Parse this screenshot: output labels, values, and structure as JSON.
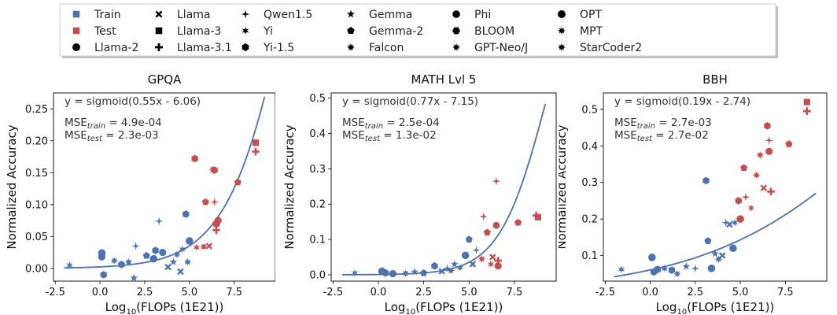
{
  "colors": {
    "train": "#4c72b0",
    "test": "#c44e52",
    "fit": "#4c72b0"
  },
  "legend": {
    "split": [
      {
        "label": "Train",
        "color": "#4c72b0"
      },
      {
        "label": "Test",
        "color": "#c44e52"
      }
    ],
    "models": [
      {
        "label": "Llama-2",
        "marker": "circle"
      },
      {
        "label": "Llama",
        "marker": "x-thick"
      },
      {
        "label": "Llama-3",
        "marker": "square"
      },
      {
        "label": "Llama-3.1",
        "marker": "plus-thick"
      },
      {
        "label": "Qwen1.5",
        "marker": "diamond-thin"
      },
      {
        "label": "Yi",
        "marker": "star6"
      },
      {
        "label": "Yi-1.5",
        "marker": "hexagon"
      },
      {
        "label": "Gemma",
        "marker": "star5"
      },
      {
        "label": "Gemma-2",
        "marker": "pentagon"
      },
      {
        "label": "Falcon",
        "marker": "star8"
      },
      {
        "label": "Phi",
        "marker": "octagon"
      },
      {
        "label": "BLOOM",
        "marker": "hexagon-flat"
      },
      {
        "label": "GPT-Neo/J",
        "marker": "star8"
      },
      {
        "label": "OPT",
        "marker": "circle"
      },
      {
        "label": "MPT",
        "marker": "star8"
      },
      {
        "label": "StarCoder2",
        "marker": "star8"
      }
    ]
  },
  "chart_data": [
    {
      "type": "scatter",
      "title": "GPQA",
      "xlabel": "Log10(FLOPs (1E21))",
      "ylabel": "Normalized Accuracy",
      "xlim": [
        -2.6,
        9.8
      ],
      "ylim": [
        -0.02,
        0.275
      ],
      "xticks": [
        -2.5,
        0.0,
        2.5,
        5.0,
        7.5
      ],
      "yticks": [
        0.0,
        0.05,
        0.1,
        0.15,
        0.2,
        0.25
      ],
      "tick_decimals": 2,
      "fit": {
        "a": 0.55,
        "b": -6.06,
        "x_range": [
          -2.0,
          9.2
        ],
        "equation": "y = sigmoid(0.55x - 6.06)"
      },
      "mse_train": {
        "prefix": "MSE",
        "sub": "train",
        "value": " = 4.9e-04"
      },
      "mse_test": {
        "prefix": "MSE",
        "sub": "test",
        "value": " = 2.3e-03"
      },
      "series": [
        {
          "name": "Train",
          "points": [
            {
              "x": -1.7,
              "y": 0.005,
              "m": "star6"
            },
            {
              "x": 0.1,
              "y": 0.024,
              "m": "circle"
            },
            {
              "x": 0.1,
              "y": 0.018,
              "m": "octagon"
            },
            {
              "x": 0.2,
              "y": -0.01,
              "m": "hexagon"
            },
            {
              "x": 0.8,
              "y": 0.012,
              "m": "star8"
            },
            {
              "x": 1.2,
              "y": 0.006,
              "m": "hexagon"
            },
            {
              "x": 1.6,
              "y": 0.01,
              "m": "star8"
            },
            {
              "x": 1.9,
              "y": -0.015,
              "m": "star5"
            },
            {
              "x": 2.0,
              "y": 0.035,
              "m": "diamond-thin"
            },
            {
              "x": 2.6,
              "y": 0.02,
              "m": "pentagon"
            },
            {
              "x": 3.0,
              "y": 0.015,
              "m": "circle"
            },
            {
              "x": 3.1,
              "y": 0.028,
              "m": "hexagon"
            },
            {
              "x": 3.3,
              "y": 0.074,
              "m": "diamond-thin"
            },
            {
              "x": 3.5,
              "y": 0.025,
              "m": "octagon"
            },
            {
              "x": 3.8,
              "y": 0.002,
              "m": "x-thick"
            },
            {
              "x": 4.1,
              "y": 0.01,
              "m": "star5"
            },
            {
              "x": 4.3,
              "y": 0.022,
              "m": "star8"
            },
            {
              "x": 4.5,
              "y": -0.005,
              "m": "x-thick"
            },
            {
              "x": 4.6,
              "y": 0.03,
              "m": "star6"
            },
            {
              "x": 4.8,
              "y": 0.085,
              "m": "hexagon"
            },
            {
              "x": 4.9,
              "y": 0.01,
              "m": "star8"
            },
            {
              "x": 5.0,
              "y": 0.043,
              "m": "circle"
            }
          ]
        },
        {
          "name": "Test",
          "points": [
            {
              "x": 5.3,
              "y": 0.172,
              "m": "hexagon"
            },
            {
              "x": 5.4,
              "y": 0.033,
              "m": "star6"
            },
            {
              "x": 5.8,
              "y": 0.034,
              "m": "star8"
            },
            {
              "x": 5.9,
              "y": 0.104,
              "m": "pentagon"
            },
            {
              "x": 6.1,
              "y": 0.035,
              "m": "x-thick"
            },
            {
              "x": 6.3,
              "y": 0.155,
              "m": "star8"
            },
            {
              "x": 6.4,
              "y": 0.154,
              "m": "hexagon"
            },
            {
              "x": 6.4,
              "y": 0.104,
              "m": "diamond-thin"
            },
            {
              "x": 6.5,
              "y": 0.07,
              "m": "circle"
            },
            {
              "x": 6.5,
              "y": 0.06,
              "m": "plus-thick"
            },
            {
              "x": 6.6,
              "y": 0.075,
              "m": "octagon"
            },
            {
              "x": 7.7,
              "y": 0.135,
              "m": "pentagon"
            },
            {
              "x": 8.7,
              "y": 0.197,
              "m": "square"
            },
            {
              "x": 8.7,
              "y": 0.183,
              "m": "plus-thick"
            }
          ]
        }
      ]
    },
    {
      "type": "scatter",
      "title": "MATH Lvl 5",
      "xlabel": "Log10(FLOPs (1E21))",
      "ylabel": "Normalized Accuracy",
      "xlim": [
        -2.6,
        9.8
      ],
      "ylim": [
        -0.018,
        0.515
      ],
      "xticks": [
        -2.5,
        0.0,
        2.5,
        5.0,
        7.5
      ],
      "yticks": [
        0.0,
        0.1,
        0.2,
        0.3,
        0.4,
        0.5
      ],
      "tick_decimals": 1,
      "fit": {
        "a": 0.77,
        "b": -7.15,
        "x_range": [
          -2.0,
          9.2
        ],
        "equation": "y = sigmoid(0.77x - 7.15)"
      },
      "mse_train": {
        "prefix": "MSE",
        "sub": "train",
        "value": " = 2.5e-04"
      },
      "mse_test": {
        "prefix": "MSE",
        "sub": "test",
        "value": " = 1.3e-02"
      },
      "series": [
        {
          "name": "Train",
          "points": [
            {
              "x": -1.3,
              "y": 0.005,
              "m": "star6"
            },
            {
              "x": 0.2,
              "y": 0.01,
              "m": "circle"
            },
            {
              "x": 0.4,
              "y": 0.005,
              "m": "hexagon"
            },
            {
              "x": 0.8,
              "y": 0.003,
              "m": "octagon"
            },
            {
              "x": 1.5,
              "y": 0.004,
              "m": "star8"
            },
            {
              "x": 2.0,
              "y": 0.008,
              "m": "star5"
            },
            {
              "x": 2.5,
              "y": 0.005,
              "m": "pentagon"
            },
            {
              "x": 3.1,
              "y": 0.025,
              "m": "hexagon"
            },
            {
              "x": 3.5,
              "y": 0.01,
              "m": "x-thick"
            },
            {
              "x": 3.8,
              "y": 0.018,
              "m": "diamond-thin"
            },
            {
              "x": 4.0,
              "y": 0.012,
              "m": "star8"
            },
            {
              "x": 4.2,
              "y": 0.03,
              "m": "star5"
            },
            {
              "x": 4.5,
              "y": 0.02,
              "m": "star6"
            },
            {
              "x": 4.8,
              "y": 0.055,
              "m": "circle"
            },
            {
              "x": 5.0,
              "y": 0.1,
              "m": "pentagon"
            },
            {
              "x": 5.2,
              "y": 0.03,
              "m": "x-thick"
            },
            {
              "x": 5.4,
              "y": 0.07,
              "m": "diamond-thin"
            }
          ]
        },
        {
          "name": "Test",
          "points": [
            {
              "x": 5.7,
              "y": 0.045,
              "m": "star8"
            },
            {
              "x": 5.8,
              "y": 0.165,
              "m": "diamond-thin"
            },
            {
              "x": 6.0,
              "y": 0.12,
              "m": "pentagon"
            },
            {
              "x": 6.2,
              "y": 0.03,
              "m": "star6"
            },
            {
              "x": 6.3,
              "y": 0.05,
              "m": "x-thick"
            },
            {
              "x": 6.5,
              "y": 0.265,
              "m": "diamond-thin"
            },
            {
              "x": 6.5,
              "y": 0.14,
              "m": "hexagon"
            },
            {
              "x": 6.6,
              "y": 0.04,
              "m": "plus-thick"
            },
            {
              "x": 6.6,
              "y": 0.025,
              "m": "octagon"
            },
            {
              "x": 7.7,
              "y": 0.148,
              "m": "pentagon"
            },
            {
              "x": 8.7,
              "y": 0.168,
              "m": "plus-thick"
            },
            {
              "x": 8.8,
              "y": 0.163,
              "m": "square"
            }
          ]
        }
      ]
    },
    {
      "type": "scatter",
      "title": "BBH",
      "xlabel": "Log10(FLOPs (1E21))",
      "ylabel": "Normalized Accuracy",
      "xlim": [
        -2.6,
        9.8
      ],
      "ylim": [
        0.03,
        0.545
      ],
      "xticks": [
        -2.5,
        0.0,
        2.5,
        5.0,
        7.5
      ],
      "yticks": [
        0.1,
        0.2,
        0.3,
        0.4,
        0.5
      ],
      "tick_decimals": 1,
      "fit": {
        "a": 0.19,
        "b": -2.74,
        "x_range": [
          -2.0,
          9.2
        ],
        "equation": "y = sigmoid(0.19x - 2.74)"
      },
      "mse_train": {
        "prefix": "MSE",
        "sub": "train",
        "value": " = 2.7e-03"
      },
      "mse_test": {
        "prefix": "MSE",
        "sub": "test",
        "value": " = 2.7e-02"
      },
      "series": [
        {
          "name": "Train",
          "points": [
            {
              "x": -1.6,
              "y": 0.062,
              "m": "star6"
            },
            {
              "x": 0.1,
              "y": 0.095,
              "m": "circle"
            },
            {
              "x": 0.2,
              "y": 0.055,
              "m": "hexagon"
            },
            {
              "x": 0.4,
              "y": 0.062,
              "m": "octagon"
            },
            {
              "x": 0.8,
              "y": 0.065,
              "m": "star8"
            },
            {
              "x": 1.2,
              "y": 0.06,
              "m": "hexagon"
            },
            {
              "x": 1.5,
              "y": 0.05,
              "m": "star8"
            },
            {
              "x": 2.0,
              "y": 0.07,
              "m": "star5"
            },
            {
              "x": 2.5,
              "y": 0.065,
              "m": "diamond-thin"
            },
            {
              "x": 3.1,
              "y": 0.305,
              "m": "hexagon"
            },
            {
              "x": 3.2,
              "y": 0.14,
              "m": "pentagon"
            },
            {
              "x": 3.4,
              "y": 0.065,
              "m": "circle"
            },
            {
              "x": 3.6,
              "y": 0.105,
              "m": "star5"
            },
            {
              "x": 3.8,
              "y": 0.09,
              "m": "star8"
            },
            {
              "x": 4.0,
              "y": 0.1,
              "m": "x-thick"
            },
            {
              "x": 4.2,
              "y": 0.19,
              "m": "diamond-thin"
            },
            {
              "x": 4.4,
              "y": 0.185,
              "m": "x-thick"
            },
            {
              "x": 4.6,
              "y": 0.12,
              "m": "circle"
            },
            {
              "x": 4.7,
              "y": 0.19,
              "m": "star6"
            }
          ]
        },
        {
          "name": "Test",
          "points": [
            {
              "x": 4.9,
              "y": 0.25,
              "m": "hexagon"
            },
            {
              "x": 5.0,
              "y": 0.2,
              "m": "circle"
            },
            {
              "x": 5.2,
              "y": 0.34,
              "m": "pentagon"
            },
            {
              "x": 5.3,
              "y": 0.26,
              "m": "diamond-thin"
            },
            {
              "x": 5.6,
              "y": 0.23,
              "m": "star6"
            },
            {
              "x": 5.9,
              "y": 0.32,
              "m": "star8"
            },
            {
              "x": 6.1,
              "y": 0.375,
              "m": "star8"
            },
            {
              "x": 6.3,
              "y": 0.285,
              "m": "x-thick"
            },
            {
              "x": 6.5,
              "y": 0.455,
              "m": "hexagon"
            },
            {
              "x": 6.6,
              "y": 0.385,
              "m": "octagon"
            },
            {
              "x": 6.7,
              "y": 0.275,
              "m": "plus-thick"
            },
            {
              "x": 6.6,
              "y": 0.415,
              "m": "diamond-thin"
            },
            {
              "x": 7.7,
              "y": 0.405,
              "m": "pentagon"
            },
            {
              "x": 8.7,
              "y": 0.52,
              "m": "square"
            },
            {
              "x": 8.7,
              "y": 0.495,
              "m": "plus-thick"
            }
          ]
        }
      ]
    }
  ]
}
